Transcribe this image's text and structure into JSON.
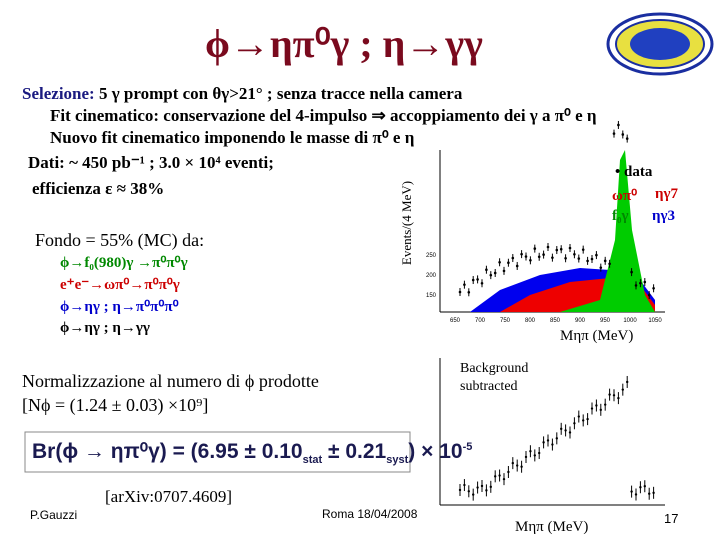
{
  "header": {
    "title": "ϕ→ηπ⁰γ ; η→γγ"
  },
  "body": {
    "lines": [
      {
        "label": "Selezione:",
        "text": " 5 γ prompt con θγ>21° ; senza tracce nella camera"
      },
      {
        "text": "Fit cinematico: conservazione del 4-impulso ⇒ accoppiamento dei γ a π⁰ e η"
      },
      {
        "text": "Nuovo fit cinematico imponendo le masse di π⁰ e η"
      },
      {
        "text": "Dati: ~ 450 pb⁻¹ ; 3.0 × 10⁴ eventi;"
      },
      {
        "text": "efficienza  ε ≈ 38%"
      }
    ],
    "background_title": "Fondo = 55% (MC) da:",
    "backgrounds": [
      "ϕ→f₀(980)γ →π⁰π⁰γ",
      "e⁺e⁻→ωπ⁰→π⁰π⁰γ",
      "ϕ→ηγ ; η→π⁰π⁰π⁰",
      "ϕ→ηγ ; η→γγ"
    ],
    "normalization": [
      "Normalizzazione al numero di ϕ prodotte",
      "[Nϕ = (1.24 ± 0.03) ×10⁹]"
    ],
    "result": {
      "main": "Br(ϕ → ηπ⁰γ) = (6.95 ± 0.10",
      "stat": "stat",
      "mid": " ± 0.21",
      "syst": "syst",
      "end": ") × 10",
      "exp": "-5"
    },
    "reference": "[arXiv:0707.4609]"
  },
  "plot1": {
    "ylabel": "Events/(4 MeV)",
    "xlabel": "Mηπ (MeV)",
    "legend": [
      "• data",
      "ωπ⁰",
      "ηγ7",
      "f₀γ",
      "ηγ3"
    ],
    "xticks": [
      "650",
      "700",
      "750",
      "800",
      "850",
      "900",
      "950",
      "1000",
      "1050"
    ],
    "yticks": [
      "150",
      "200",
      "250"
    ]
  },
  "plot2": {
    "note": [
      "Background",
      "subtracted"
    ],
    "xlabel": "Mηπ (MeV)"
  },
  "footer": {
    "author": "P.Gauzzi",
    "place": "Roma 18/04/2008",
    "page": "17"
  }
}
